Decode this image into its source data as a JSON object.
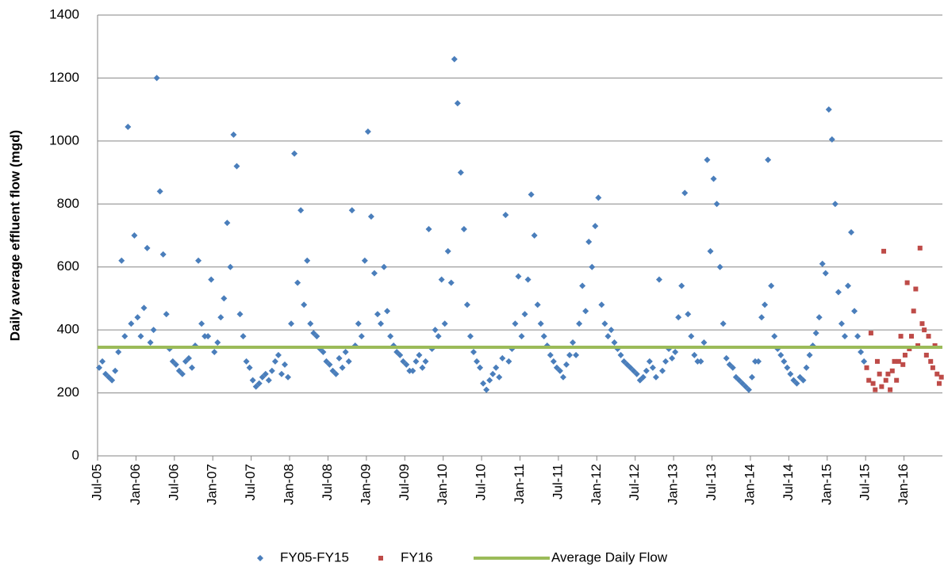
{
  "chart_data": {
    "type": "scatter",
    "ylabel": "Daily average effluent flow (mgd)",
    "xlim": [
      "2005-07",
      "2016-07"
    ],
    "xticks": [
      {
        "value": "2005-07",
        "label": "Jul-05"
      },
      {
        "value": "2006-01",
        "label": "Jan-06"
      },
      {
        "value": "2006-07",
        "label": "Jul-06"
      },
      {
        "value": "2007-01",
        "label": "Jan-07"
      },
      {
        "value": "2007-07",
        "label": "Jul-07"
      },
      {
        "value": "2008-01",
        "label": "Jan-08"
      },
      {
        "value": "2008-07",
        "label": "Jul-08"
      },
      {
        "value": "2009-01",
        "label": "Jan-09"
      },
      {
        "value": "2009-07",
        "label": "Jul-09"
      },
      {
        "value": "2010-01",
        "label": "Jan-10"
      },
      {
        "value": "2010-07",
        "label": "Jul-10"
      },
      {
        "value": "2011-01",
        "label": "Jan-11"
      },
      {
        "value": "2011-07",
        "label": "Jul-11"
      },
      {
        "value": "2012-01",
        "label": "Jan-12"
      },
      {
        "value": "2012-07",
        "label": "Jul-12"
      },
      {
        "value": "2013-01",
        "label": "Jan-13"
      },
      {
        "value": "2013-07",
        "label": "Jul-13"
      },
      {
        "value": "2014-01",
        "label": "Jan-14"
      },
      {
        "value": "2014-07",
        "label": "Jul-14"
      },
      {
        "value": "2015-01",
        "label": "Jan-15"
      },
      {
        "value": "2015-07",
        "label": "Jul-15"
      },
      {
        "value": "2016-01",
        "label": "Jan-16"
      }
    ],
    "ylim": [
      0,
      1400
    ],
    "yticks": [
      0,
      200,
      400,
      600,
      800,
      1000,
      1200,
      1400
    ],
    "grid": true,
    "legend": "bottom",
    "series": [
      {
        "name": "FY05-FY15",
        "color": "#4a7ebb",
        "marker": "diamond",
        "x": [
          "2005-07",
          "2005-07",
          "2005-08",
          "2005-08",
          "2005-09",
          "2005-09",
          "2005-10",
          "2005-10",
          "2005-11",
          "2005-11",
          "2005-12",
          "2005-12",
          "2006-01",
          "2006-01",
          "2006-02",
          "2006-02",
          "2006-03",
          "2006-03",
          "2006-04",
          "2006-04",
          "2006-05",
          "2006-05",
          "2006-06",
          "2006-06",
          "2006-07",
          "2006-07",
          "2006-08",
          "2006-08",
          "2006-09",
          "2006-09",
          "2006-10",
          "2006-10",
          "2006-11",
          "2006-11",
          "2006-12",
          "2006-12",
          "2007-01",
          "2007-01",
          "2007-02",
          "2007-02",
          "2007-03",
          "2007-03",
          "2007-04",
          "2007-04",
          "2007-05",
          "2007-05",
          "2007-06",
          "2007-06",
          "2007-07",
          "2007-07",
          "2007-08",
          "2007-08",
          "2007-09",
          "2007-09",
          "2007-10",
          "2007-10",
          "2007-11",
          "2007-11",
          "2007-12",
          "2007-12",
          "2008-01",
          "2008-01",
          "2008-02",
          "2008-02",
          "2008-03",
          "2008-03",
          "2008-04",
          "2008-04",
          "2008-05",
          "2008-05",
          "2008-06",
          "2008-06",
          "2008-07",
          "2008-07",
          "2008-08",
          "2008-08",
          "2008-09",
          "2008-09",
          "2008-10",
          "2008-10",
          "2008-11",
          "2008-11",
          "2008-12",
          "2008-12",
          "2009-01",
          "2009-01",
          "2009-02",
          "2009-02",
          "2009-03",
          "2009-03",
          "2009-04",
          "2009-04",
          "2009-05",
          "2009-05",
          "2009-06",
          "2009-06",
          "2009-07",
          "2009-07",
          "2009-08",
          "2009-08",
          "2009-09",
          "2009-09",
          "2009-10",
          "2009-10",
          "2009-11",
          "2009-11",
          "2009-12",
          "2009-12",
          "2010-01",
          "2010-01",
          "2010-02",
          "2010-02",
          "2010-03",
          "2010-03",
          "2010-04",
          "2010-04",
          "2010-05",
          "2010-05",
          "2010-06",
          "2010-06",
          "2010-07",
          "2010-07",
          "2010-08",
          "2010-08",
          "2010-09",
          "2010-09",
          "2010-10",
          "2010-10",
          "2010-11",
          "2010-11",
          "2010-12",
          "2010-12",
          "2011-01",
          "2011-01",
          "2011-02",
          "2011-02",
          "2011-03",
          "2011-03",
          "2011-04",
          "2011-04",
          "2011-05",
          "2011-05",
          "2011-06",
          "2011-06",
          "2011-07",
          "2011-07",
          "2011-08",
          "2011-08",
          "2011-09",
          "2011-09",
          "2011-10",
          "2011-10",
          "2011-11",
          "2011-11",
          "2011-12",
          "2011-12",
          "2012-01",
          "2012-01",
          "2012-02",
          "2012-02",
          "2012-03",
          "2012-03",
          "2012-04",
          "2012-04",
          "2012-05",
          "2012-05",
          "2012-06",
          "2012-06",
          "2012-07",
          "2012-07",
          "2012-08",
          "2012-08",
          "2012-09",
          "2012-09",
          "2012-10",
          "2012-10",
          "2012-11",
          "2012-11",
          "2012-12",
          "2012-12",
          "2013-01",
          "2013-01",
          "2013-02",
          "2013-02",
          "2013-03",
          "2013-03",
          "2013-04",
          "2013-04",
          "2013-05",
          "2013-05",
          "2013-06",
          "2013-06",
          "2013-07",
          "2013-07",
          "2013-08",
          "2013-08",
          "2013-09",
          "2013-09",
          "2013-10",
          "2013-10",
          "2013-11",
          "2013-11",
          "2013-12",
          "2013-12",
          "2014-01",
          "2014-01",
          "2014-02",
          "2014-02",
          "2014-03",
          "2014-03",
          "2014-04",
          "2014-04",
          "2014-05",
          "2014-05",
          "2014-06",
          "2014-06",
          "2014-07",
          "2014-07",
          "2014-08",
          "2014-08",
          "2014-09",
          "2014-09",
          "2014-10",
          "2014-10",
          "2014-11",
          "2014-11",
          "2014-12",
          "2014-12",
          "2015-01",
          "2015-01",
          "2015-02",
          "2015-02",
          "2015-03",
          "2015-03",
          "2015-04",
          "2015-04",
          "2015-05",
          "2015-05",
          "2015-06",
          "2015-06"
        ],
        "values": [
          280,
          300,
          260,
          250,
          240,
          270,
          330,
          620,
          380,
          1045,
          420,
          700,
          440,
          380,
          470,
          660,
          360,
          400,
          1200,
          840,
          640,
          450,
          340,
          300,
          290,
          270,
          260,
          300,
          310,
          280,
          350,
          620,
          420,
          380,
          380,
          560,
          330,
          360,
          440,
          500,
          740,
          600,
          1020,
          920,
          450,
          380,
          300,
          280,
          240,
          220,
          230,
          250,
          260,
          240,
          270,
          300,
          320,
          260,
          290,
          250,
          420,
          960,
          550,
          780,
          480,
          620,
          420,
          390,
          380,
          340,
          330,
          300,
          290,
          270,
          260,
          310,
          280,
          330,
          300,
          780,
          350,
          420,
          380,
          620,
          1030,
          760,
          580,
          450,
          420,
          600,
          460,
          380,
          350,
          330,
          320,
          300,
          290,
          270,
          270,
          300,
          320,
          280,
          300,
          720,
          340,
          400,
          380,
          560,
          420,
          650,
          550,
          1260,
          1120,
          900,
          720,
          480,
          380,
          330,
          300,
          280,
          230,
          210,
          240,
          260,
          280,
          250,
          310,
          765,
          300,
          340,
          420,
          570,
          380,
          450,
          560,
          830,
          700,
          480,
          420,
          380,
          350,
          320,
          300,
          280,
          270,
          250,
          290,
          320,
          360,
          320,
          420,
          540,
          460,
          680,
          600,
          730,
          820,
          480,
          420,
          380,
          400,
          360,
          340,
          320,
          300,
          290,
          280,
          270,
          260,
          240,
          250,
          270,
          300,
          280,
          250,
          560,
          270,
          300,
          340,
          310,
          330,
          440,
          540,
          835,
          450,
          380,
          320,
          300,
          300,
          360,
          940,
          650,
          880,
          800,
          600,
          420,
          310,
          290,
          280,
          250,
          240,
          230,
          220,
          210,
          250,
          300,
          300,
          440,
          480,
          940,
          540,
          380,
          340,
          320,
          300,
          280,
          260,
          240,
          230,
          250,
          240,
          280,
          320,
          350,
          390,
          440,
          610,
          580,
          1100,
          1005,
          800,
          520,
          420,
          380,
          540,
          710,
          460,
          380,
          330,
          300
        ]
      },
      {
        "name": "FY16",
        "color": "#be4b48",
        "marker": "square",
        "x": [
          "2015-07",
          "2015-07",
          "2015-07",
          "2015-08",
          "2015-08",
          "2015-08",
          "2015-09",
          "2015-09",
          "2015-09",
          "2015-10",
          "2015-10",
          "2015-10",
          "2015-11",
          "2015-11",
          "2015-11",
          "2015-12",
          "2015-12",
          "2015-12",
          "2016-01",
          "2016-01",
          "2016-01",
          "2016-02",
          "2016-02",
          "2016-02",
          "2016-03",
          "2016-03",
          "2016-03",
          "2016-04",
          "2016-04",
          "2016-04",
          "2016-05",
          "2016-05",
          "2016-05",
          "2016-06",
          "2016-06",
          "2016-06"
        ],
        "values": [
          280,
          240,
          390,
          230,
          210,
          300,
          260,
          220,
          650,
          240,
          260,
          210,
          270,
          300,
          240,
          300,
          380,
          290,
          320,
          550,
          340,
          380,
          460,
          530,
          350,
          660,
          420,
          400,
          320,
          380,
          300,
          280,
          350,
          260,
          230,
          250
        ]
      }
    ],
    "reference_line": {
      "name": "Average Daily Flow",
      "color": "#9bbb59",
      "value": 345
    }
  }
}
